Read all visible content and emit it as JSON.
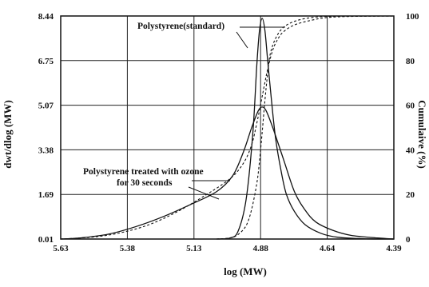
{
  "chart_data": {
    "type": "line",
    "xlabel": "log (MW)",
    "ylabel_left": "dwt/dlog (MW)",
    "ylabel_right": "Cumulaive (%)",
    "x_reversed": true,
    "xlim": [
      5.63,
      4.39
    ],
    "x_ticks": [
      "5.63",
      "5.38",
      "5.13",
      "4.88",
      "4.64",
      "4.39"
    ],
    "ylim_left": [
      0.01,
      8.44
    ],
    "y_ticks_left": [
      "8.44",
      "6.75",
      "5.07",
      "3.38",
      "1.69",
      "0.01"
    ],
    "ylim_right": [
      0,
      100
    ],
    "y_ticks_right": [
      "100",
      "80",
      "60",
      "40",
      "20",
      "0"
    ],
    "grid": true,
    "annotations": [
      {
        "text": "Polystyrene(standard)"
      },
      {
        "text": "Polystyrene treated with ozone"
      },
      {
        "text": "for 30 seconds"
      }
    ],
    "series": [
      {
        "axis": "left",
        "style": "solid",
        "points": [
          [
            5.63,
            0.01
          ],
          [
            5.55,
            0.06
          ],
          [
            5.45,
            0.2
          ],
          [
            5.35,
            0.48
          ],
          [
            5.25,
            0.85
          ],
          [
            5.15,
            1.3
          ],
          [
            5.05,
            1.8
          ],
          [
            4.99,
            2.4
          ],
          [
            4.95,
            3.3
          ],
          [
            4.92,
            4.2
          ],
          [
            4.895,
            4.85
          ],
          [
            4.88,
            5.0
          ],
          [
            4.865,
            4.85
          ],
          [
            4.84,
            4.2
          ],
          [
            4.8,
            3.0
          ],
          [
            4.76,
            1.8
          ],
          [
            4.72,
            1.1
          ],
          [
            4.68,
            0.65
          ],
          [
            4.62,
            0.35
          ],
          [
            4.55,
            0.15
          ],
          [
            4.45,
            0.05
          ],
          [
            4.39,
            0.01
          ]
        ]
      },
      {
        "axis": "left",
        "style": "solid",
        "points": [
          [
            5.05,
            0.01
          ],
          [
            5.0,
            0.05
          ],
          [
            4.97,
            0.3
          ],
          [
            4.94,
            1.5
          ],
          [
            4.915,
            4.0
          ],
          [
            4.9,
            6.6
          ],
          [
            4.89,
            7.9
          ],
          [
            4.88,
            8.35
          ],
          [
            4.87,
            7.9
          ],
          [
            4.86,
            6.8
          ],
          [
            4.845,
            5.2
          ],
          [
            4.83,
            3.8
          ],
          [
            4.81,
            2.6
          ],
          [
            4.79,
            1.7
          ],
          [
            4.76,
            1.05
          ],
          [
            4.72,
            0.55
          ],
          [
            4.66,
            0.22
          ],
          [
            4.6,
            0.08
          ],
          [
            4.5,
            0.02
          ],
          [
            4.39,
            0.01
          ]
        ]
      },
      {
        "axis": "right",
        "style": "dashed",
        "points": [
          [
            5.63,
            0.0
          ],
          [
            5.5,
            1.0
          ],
          [
            5.4,
            3.0
          ],
          [
            5.3,
            6.5
          ],
          [
            5.2,
            12.0
          ],
          [
            5.1,
            19.0
          ],
          [
            5.0,
            27.0
          ],
          [
            4.95,
            34.0
          ],
          [
            4.92,
            42.0
          ],
          [
            4.9,
            52.0
          ],
          [
            4.88,
            64.0
          ],
          [
            4.86,
            76.0
          ],
          [
            4.84,
            85.0
          ],
          [
            4.82,
            90.0
          ],
          [
            4.8,
            93.0
          ],
          [
            4.76,
            96.0
          ],
          [
            4.7,
            98.0
          ],
          [
            4.64,
            99.3
          ],
          [
            4.55,
            99.8
          ],
          [
            4.39,
            100.0
          ]
        ]
      },
      {
        "axis": "right",
        "style": "dashed",
        "points": [
          [
            5.05,
            0.0
          ],
          [
            5.0,
            0.5
          ],
          [
            4.97,
            2.0
          ],
          [
            4.94,
            6.0
          ],
          [
            4.92,
            13.0
          ],
          [
            4.9,
            25.0
          ],
          [
            4.89,
            35.0
          ],
          [
            4.88,
            48.0
          ],
          [
            4.87,
            62.0
          ],
          [
            4.86,
            74.0
          ],
          [
            4.85,
            83.0
          ],
          [
            4.83,
            90.0
          ],
          [
            4.8,
            95.0
          ],
          [
            4.75,
            98.0
          ],
          [
            4.68,
            99.5
          ],
          [
            4.6,
            99.9
          ],
          [
            4.39,
            100.0
          ]
        ]
      }
    ]
  }
}
